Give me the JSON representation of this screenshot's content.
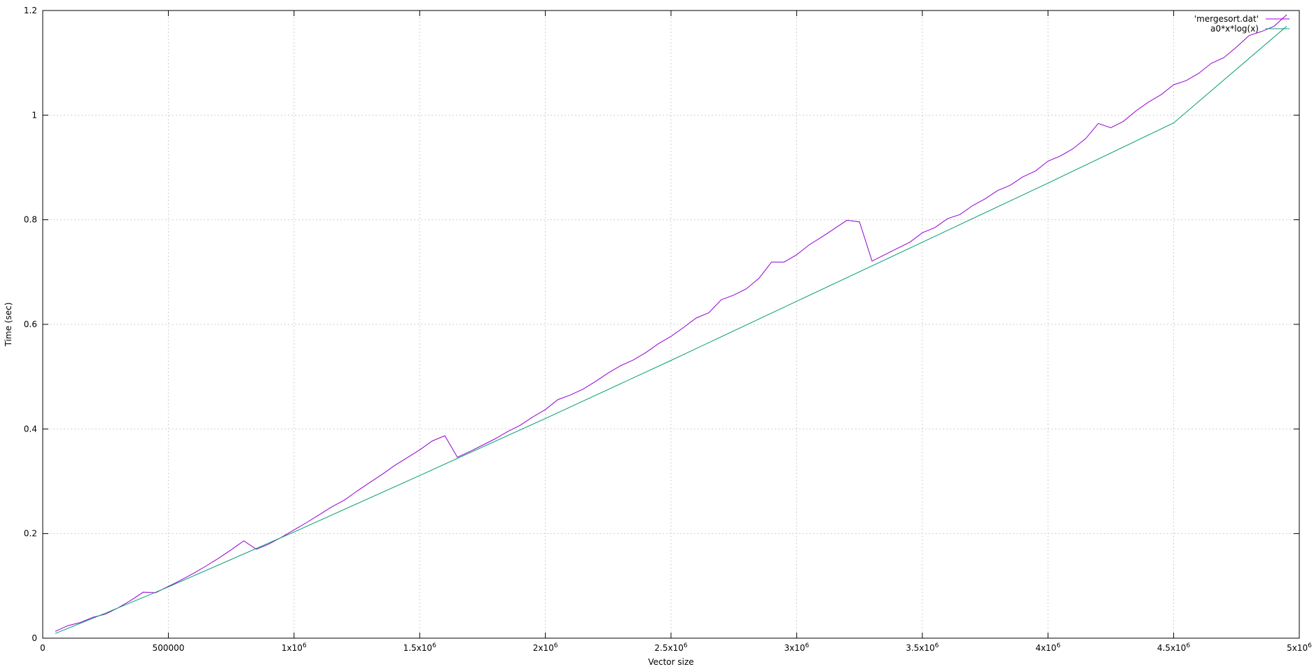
{
  "chart_data": {
    "type": "line",
    "xlabel": "Vector size",
    "ylabel": "Time (sec)",
    "xlim": [
      0,
      5000000
    ],
    "ylim": [
      0,
      1.2
    ],
    "grid": true,
    "legend_position": "top-right",
    "x_ticks": [
      {
        "value": 0,
        "label": "0",
        "sup": ""
      },
      {
        "value": 500000,
        "label": "500000",
        "sup": ""
      },
      {
        "value": 1000000,
        "label": "1x10",
        "sup": "6"
      },
      {
        "value": 1500000,
        "label": "1.5x10",
        "sup": "6"
      },
      {
        "value": 2000000,
        "label": "2x10",
        "sup": "6"
      },
      {
        "value": 2500000,
        "label": "2.5x10",
        "sup": "6"
      },
      {
        "value": 3000000,
        "label": "3x10",
        "sup": "6"
      },
      {
        "value": 3500000,
        "label": "3.5x10",
        "sup": "6"
      },
      {
        "value": 4000000,
        "label": "4x10",
        "sup": "6"
      },
      {
        "value": 4500000,
        "label": "4.5x10",
        "sup": "6"
      },
      {
        "value": 5000000,
        "label": "5x10",
        "sup": "6"
      }
    ],
    "y_ticks": [
      {
        "value": 0,
        "label": "0"
      },
      {
        "value": 0.2,
        "label": "0.2"
      },
      {
        "value": 0.4,
        "label": "0.4"
      },
      {
        "value": 0.6,
        "label": "0.6"
      },
      {
        "value": 0.8,
        "label": "0.8"
      },
      {
        "value": 1.0,
        "label": "1"
      },
      {
        "value": 1.2,
        "label": "1.2"
      }
    ],
    "series": [
      {
        "name": "'mergesort.dat'",
        "color": "#9400d3",
        "x": [
          50000,
          100000,
          150000,
          200000,
          250000,
          300000,
          350000,
          400000,
          450000,
          500000,
          550000,
          600000,
          650000,
          700000,
          750000,
          800000,
          850000,
          900000,
          950000,
          1000000,
          1050000,
          1100000,
          1150000,
          1200000,
          1250000,
          1300000,
          1350000,
          1400000,
          1450000,
          1500000,
          1550000,
          1600000,
          1650000,
          1700000,
          1750000,
          1800000,
          1850000,
          1900000,
          1950000,
          2000000,
          2050000,
          2100000,
          2150000,
          2200000,
          2250000,
          2300000,
          2350000,
          2400000,
          2450000,
          2500000,
          2550000,
          2600000,
          2650000,
          2700000,
          2750000,
          2800000,
          2850000,
          2900000,
          2950000,
          3000000,
          3050000,
          3100000,
          3150000,
          3200000,
          3250000,
          3300000,
          3350000,
          3400000,
          3450000,
          3500000,
          3550000,
          3600000,
          3650000,
          3700000,
          3750000,
          3800000,
          3850000,
          3900000,
          3950000,
          4000000,
          4050000,
          4100000,
          4150000,
          4200000,
          4250000,
          4300000,
          4350000,
          4400000,
          4450000,
          4500000,
          4550000,
          4600000,
          4650000,
          4700000,
          4750000,
          4800000,
          4850000,
          4900000,
          4950000
        ],
        "y": [
          0.013,
          0.024,
          0.03,
          0.04,
          0.046,
          0.058,
          0.072,
          0.088,
          0.087,
          0.099,
          0.111,
          0.124,
          0.138,
          0.153,
          0.169,
          0.186,
          0.17,
          0.18,
          0.193,
          0.207,
          0.221,
          0.236,
          0.251,
          0.264,
          0.281,
          0.297,
          0.313,
          0.33,
          0.345,
          0.36,
          0.377,
          0.387,
          0.346,
          0.357,
          0.369,
          0.381,
          0.395,
          0.407,
          0.423,
          0.437,
          0.456,
          0.465,
          0.476,
          0.491,
          0.507,
          0.521,
          0.532,
          0.546,
          0.563,
          0.577,
          0.594,
          0.612,
          0.622,
          0.647,
          0.656,
          0.668,
          0.688,
          0.719,
          0.719,
          0.733,
          0.752,
          0.767,
          0.783,
          0.799,
          0.796,
          0.721,
          0.733,
          0.745,
          0.757,
          0.775,
          0.785,
          0.802,
          0.81,
          0.827,
          0.84,
          0.856,
          0.866,
          0.882,
          0.893,
          0.912,
          0.922,
          0.936,
          0.955,
          0.984,
          0.976,
          0.988,
          1.008,
          1.025,
          1.039,
          1.058,
          1.066,
          1.08,
          1.099,
          1.11,
          1.13,
          1.152,
          1.16,
          1.17,
          1.192
        ]
      },
      {
        "name": "a0*x*log(x)",
        "color": "#009e73",
        "x": [
          50000,
          250000,
          500000,
          1000000,
          1500000,
          2000000,
          2500000,
          3000000,
          3500000,
          4000000,
          4500000,
          4950000
        ],
        "y": [
          0.009,
          0.048,
          0.098,
          0.203,
          0.311,
          0.42,
          0.531,
          0.644,
          0.757,
          0.87,
          0.985,
          1.17
        ]
      }
    ]
  }
}
